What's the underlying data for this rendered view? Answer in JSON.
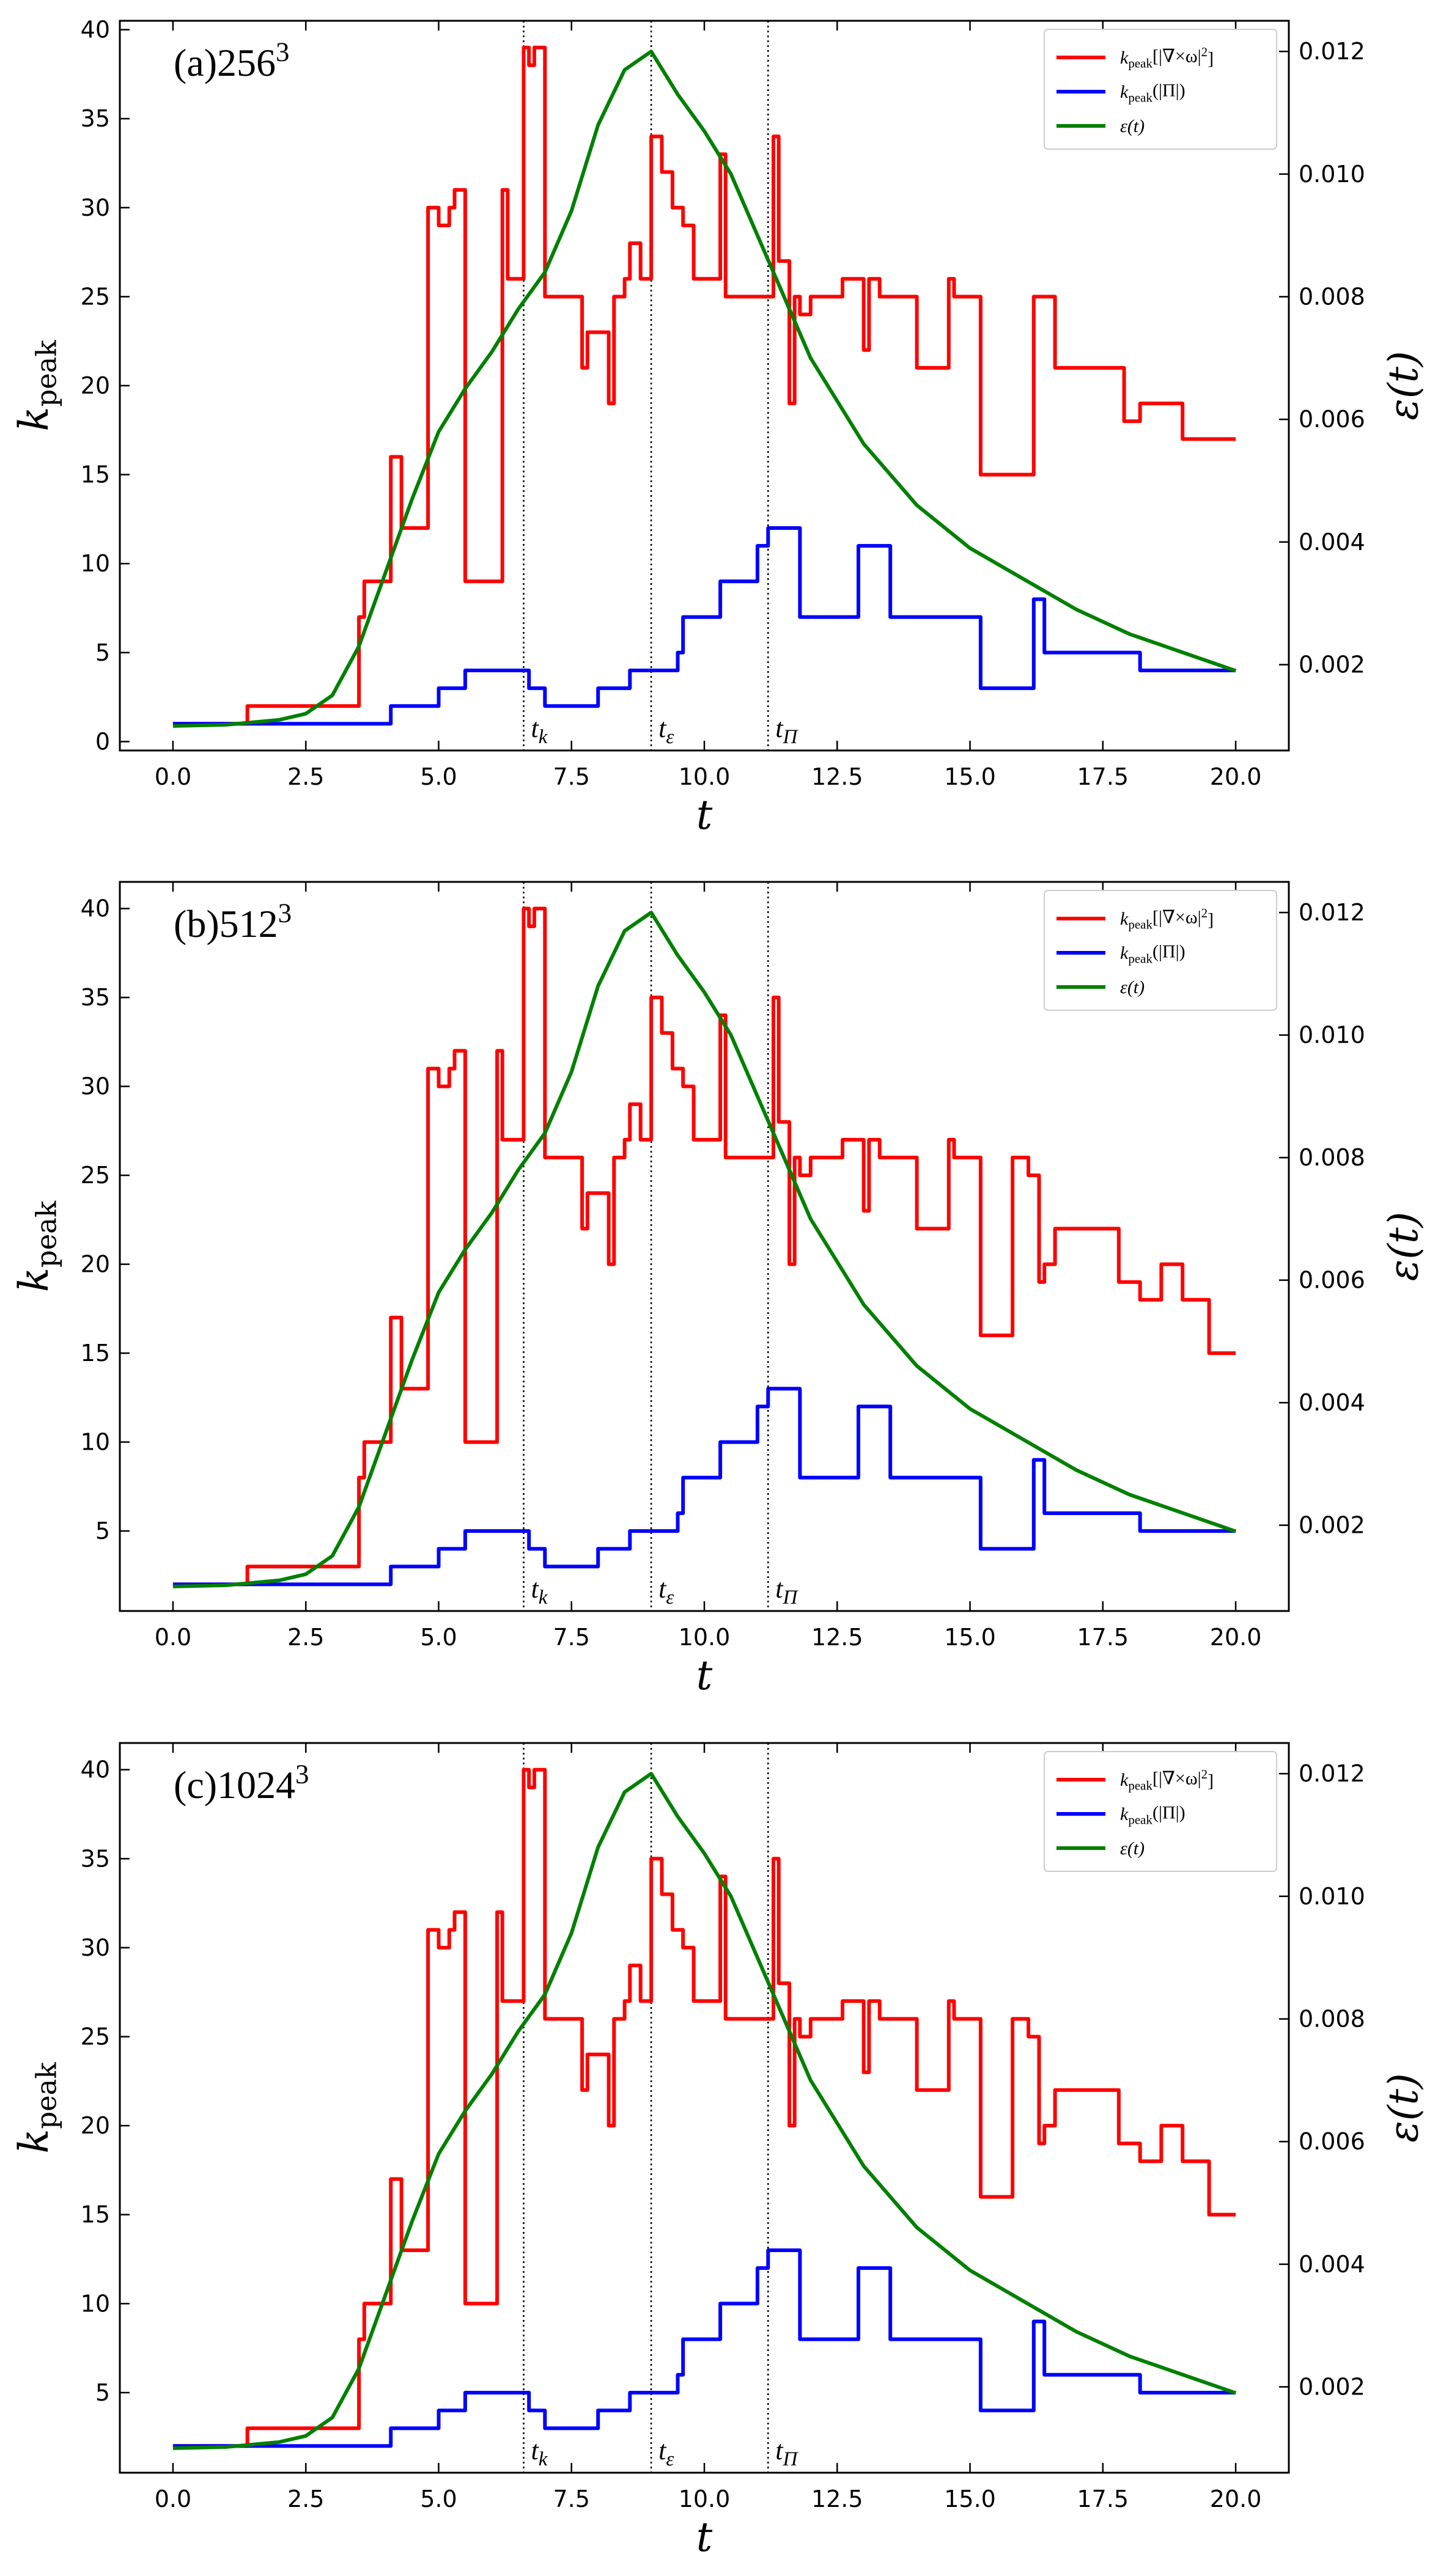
{
  "chart_data": [
    {
      "type": "line",
      "panel_label": "(a)256³",
      "xlabel": "t",
      "ylabel": "kpeak",
      "ylabel_right": "ε(t)",
      "xlim": [
        -1,
        21
      ],
      "ylim": [
        -0.5,
        40.5
      ],
      "y2lim": [
        0.0006,
        0.0125
      ],
      "xticks": [
        "0.0",
        "2.5",
        "5.0",
        "7.5",
        "10.0",
        "12.5",
        "15.0",
        "17.5",
        "20.0"
      ],
      "yticks": [
        "0",
        "5",
        "10",
        "15",
        "20",
        "25",
        "30",
        "35",
        "40"
      ],
      "y2ticks": [
        "0.002",
        "0.004",
        "0.006",
        "0.008",
        "0.010",
        "0.012"
      ],
      "vlines": [
        {
          "x": 6.6,
          "label": "tk"
        },
        {
          "x": 9.0,
          "label": "tε"
        },
        {
          "x": 11.2,
          "label": "tΠ"
        }
      ],
      "legend": [
        "kpeak[|∇×ω|²]",
        "kpeak(|Π|)",
        "ε(t)"
      ],
      "series": [
        {
          "name": "kpeak[|∇×ω|²]",
          "color": "#ff0000",
          "axis": "left",
          "step": true,
          "x": [
            0,
            1.4,
            3.5,
            3.6,
            4.1,
            4.3,
            4.8,
            5.0,
            5.2,
            5.3,
            5.5,
            5.6,
            6.2,
            6.3,
            6.6,
            6.7,
            6.8,
            7.0,
            7.7,
            7.8,
            8.2,
            8.3,
            8.5,
            8.6,
            8.8,
            9.0,
            9.2,
            9.4,
            9.6,
            9.8,
            10.0,
            10.3,
            10.4,
            10.5,
            10.9,
            11.0,
            11.3,
            11.4,
            11.6,
            11.7,
            11.8,
            12.0,
            12.5,
            12.6,
            13.0,
            13.1,
            13.3,
            14.0,
            14.6,
            14.7,
            14.8,
            15.2,
            16.1,
            16.2,
            16.6,
            17.9,
            18.2,
            19.0,
            20.0
          ],
          "y": [
            1,
            2,
            7,
            9,
            16,
            12,
            30,
            29,
            30,
            31,
            9,
            9,
            31,
            26,
            39,
            38,
            39,
            25,
            21,
            23,
            19,
            25,
            26,
            28,
            26,
            34,
            32,
            30,
            29,
            26,
            26,
            33,
            25,
            25,
            25,
            25,
            34,
            27,
            19,
            25,
            24,
            25,
            25,
            26,
            22,
            26,
            25,
            21,
            26,
            25,
            25,
            15,
            15,
            25,
            21,
            18,
            19,
            17,
            17
          ]
        },
        {
          "name": "kpeak(|Π|)",
          "color": "#0000ff",
          "axis": "left",
          "step": true,
          "x": [
            0,
            4.1,
            4.5,
            5.0,
            5.5,
            6.6,
            6.7,
            7.0,
            8.0,
            8.2,
            8.6,
            9.0,
            9.5,
            9.6,
            10.0,
            10.3,
            10.5,
            11.0,
            11.2,
            11.5,
            11.8,
            12.5,
            12.9,
            13.2,
            13.5,
            13.6,
            15.2,
            16.2,
            16.4,
            18.0,
            18.2,
            19.0,
            20.0
          ],
          "y": [
            1,
            2,
            2,
            3,
            4,
            4,
            3,
            2,
            3,
            3,
            4,
            4,
            5,
            7,
            7,
            9,
            9,
            11,
            12,
            12,
            7,
            7,
            11,
            11,
            7,
            7,
            3,
            8,
            5,
            5,
            4,
            4,
            4
          ]
        },
        {
          "name": "ε(t)",
          "color": "#008000",
          "axis": "right",
          "step": false,
          "x": [
            0,
            1,
            2,
            2.5,
            3,
            3.5,
            4,
            4.5,
            5,
            5.5,
            6,
            6.5,
            7,
            7.5,
            8,
            8.5,
            9,
            9.5,
            10,
            10.5,
            11,
            11.5,
            12,
            12.5,
            13,
            13.5,
            14,
            15,
            16,
            17,
            18,
            19,
            20
          ],
          "y": [
            0.001,
            0.00102,
            0.0011,
            0.0012,
            0.0015,
            0.0023,
            0.0035,
            0.0047,
            0.0058,
            0.0065,
            0.0071,
            0.0078,
            0.0084,
            0.0094,
            0.0108,
            0.0117,
            0.012,
            0.0113,
            0.0107,
            0.01,
            0.009,
            0.008,
            0.007,
            0.0063,
            0.0056,
            0.0051,
            0.0046,
            0.0039,
            0.0034,
            0.0029,
            0.0025,
            0.0022,
            0.0019
          ]
        }
      ]
    },
    {
      "type": "line",
      "panel_label": "(b)512³",
      "xlabel": "t",
      "ylabel": "kpeak",
      "ylabel_right": "ε(t)",
      "xlim": [
        -1,
        21
      ],
      "ylim": [
        0.5,
        41.5
      ],
      "y2lim": [
        0.0006,
        0.0125
      ],
      "xticks": [
        "0.0",
        "2.5",
        "5.0",
        "7.5",
        "10.0",
        "12.5",
        "15.0",
        "17.5",
        "20.0"
      ],
      "yticks": [
        "5",
        "10",
        "15",
        "20",
        "25",
        "30",
        "35",
        "40"
      ],
      "y2ticks": [
        "0.002",
        "0.004",
        "0.006",
        "0.008",
        "0.010",
        "0.012"
      ],
      "vlines": [
        {
          "x": 6.6,
          "label": "tk"
        },
        {
          "x": 9.0,
          "label": "tε"
        },
        {
          "x": 11.2,
          "label": "tΠ"
        }
      ],
      "legend": [
        "kpeak[|∇×ω|²]",
        "kpeak(|Π|)",
        "ε(t)"
      ],
      "series": [
        {
          "name": "kpeak[|∇×ω|²]",
          "color": "#ff0000",
          "axis": "left",
          "step": true,
          "x": [
            0,
            1.4,
            3.5,
            3.6,
            4.1,
            4.3,
            4.8,
            5.0,
            5.2,
            5.3,
            5.5,
            5.6,
            6.1,
            6.2,
            6.3,
            6.6,
            6.7,
            6.8,
            7.0,
            7.7,
            7.8,
            8.2,
            8.3,
            8.5,
            8.6,
            8.8,
            9.0,
            9.2,
            9.4,
            9.6,
            9.8,
            10.0,
            10.3,
            10.4,
            10.5,
            10.9,
            11.0,
            11.3,
            11.4,
            11.6,
            11.7,
            11.8,
            12.0,
            12.5,
            12.6,
            13.0,
            13.1,
            13.3,
            14.0,
            14.6,
            14.7,
            14.8,
            15.2,
            15.6,
            15.8,
            16.1,
            16.3,
            16.4,
            16.6,
            17.4,
            17.8,
            18.2,
            18.6,
            19.0,
            19.5,
            20.0
          ],
          "y": [
            2,
            3,
            8,
            10,
            17,
            13,
            31,
            30,
            31,
            32,
            10,
            10,
            32,
            27,
            27,
            40,
            39,
            40,
            26,
            22,
            24,
            20,
            26,
            27,
            29,
            27,
            35,
            33,
            31,
            30,
            27,
            27,
            34,
            26,
            26,
            26,
            26,
            35,
            28,
            20,
            26,
            25,
            26,
            26,
            27,
            23,
            27,
            26,
            22,
            27,
            26,
            26,
            16,
            16,
            26,
            25,
            19,
            20,
            22,
            22,
            19,
            18,
            20,
            18,
            15,
            15
          ]
        },
        {
          "name": "kpeak(|Π|)",
          "color": "#0000ff",
          "axis": "left",
          "step": true,
          "x": [
            0,
            4.1,
            4.5,
            5.0,
            5.5,
            6.6,
            6.7,
            7.0,
            8.0,
            8.2,
            8.6,
            9.0,
            9.5,
            9.6,
            10.0,
            10.3,
            10.5,
            11.0,
            11.2,
            11.5,
            11.8,
            12.5,
            12.9,
            13.2,
            13.5,
            13.6,
            15.2,
            16.2,
            16.4,
            18.0,
            18.2,
            19.0,
            20.0
          ],
          "y": [
            2,
            3,
            3,
            4,
            5,
            5,
            4,
            3,
            4,
            4,
            5,
            5,
            6,
            8,
            8,
            10,
            10,
            12,
            13,
            13,
            8,
            8,
            12,
            12,
            8,
            8,
            4,
            9,
            6,
            6,
            5,
            5,
            5
          ]
        },
        {
          "name": "ε(t)",
          "color": "#008000",
          "axis": "right",
          "step": false,
          "x": [
            0,
            1,
            2,
            2.5,
            3,
            3.5,
            4,
            4.5,
            5,
            5.5,
            6,
            6.5,
            7,
            7.5,
            8,
            8.5,
            9,
            9.5,
            10,
            10.5,
            11,
            11.5,
            12,
            12.5,
            13,
            13.5,
            14,
            15,
            16,
            17,
            18,
            19,
            20
          ],
          "y": [
            0.001,
            0.00102,
            0.0011,
            0.0012,
            0.0015,
            0.0023,
            0.0035,
            0.0047,
            0.0058,
            0.0065,
            0.0071,
            0.0078,
            0.0084,
            0.0094,
            0.0108,
            0.0117,
            0.012,
            0.0113,
            0.0107,
            0.01,
            0.009,
            0.008,
            0.007,
            0.0063,
            0.0056,
            0.0051,
            0.0046,
            0.0039,
            0.0034,
            0.0029,
            0.0025,
            0.0022,
            0.0019
          ]
        }
      ]
    },
    {
      "type": "line",
      "panel_label": "(c)1024³",
      "xlabel": "t",
      "ylabel": "kpeak",
      "ylabel_right": "ε(t)",
      "xlim": [
        -1,
        21
      ],
      "ylim": [
        0.5,
        41.5
      ],
      "y2lim": [
        0.0006,
        0.0125
      ],
      "xticks": [
        "0.0",
        "2.5",
        "5.0",
        "7.5",
        "10.0",
        "12.5",
        "15.0",
        "17.5",
        "20.0"
      ],
      "yticks": [
        "5",
        "10",
        "15",
        "20",
        "25",
        "30",
        "35",
        "40"
      ],
      "y2ticks": [
        "0.002",
        "0.004",
        "0.006",
        "0.008",
        "0.010",
        "0.012"
      ],
      "vlines": [
        {
          "x": 6.6,
          "label": "tk"
        },
        {
          "x": 9.0,
          "label": "tε"
        },
        {
          "x": 11.2,
          "label": "tΠ"
        }
      ],
      "legend": [
        "kpeak[|∇×ω|²]",
        "kpeak(|Π|)",
        "ε(t)"
      ],
      "series": [
        {
          "name": "kpeak[|∇×ω|²]",
          "color": "#ff0000",
          "axis": "left",
          "step": true,
          "x": [
            0,
            1.4,
            3.5,
            3.6,
            4.1,
            4.3,
            4.8,
            5.0,
            5.2,
            5.3,
            5.5,
            5.6,
            6.1,
            6.2,
            6.3,
            6.6,
            6.7,
            6.8,
            7.0,
            7.7,
            7.8,
            8.2,
            8.3,
            8.5,
            8.6,
            8.8,
            9.0,
            9.2,
            9.4,
            9.6,
            9.8,
            10.0,
            10.3,
            10.4,
            10.5,
            10.9,
            11.0,
            11.3,
            11.4,
            11.6,
            11.7,
            11.8,
            12.0,
            12.5,
            12.6,
            13.0,
            13.1,
            13.3,
            14.0,
            14.6,
            14.7,
            14.8,
            15.2,
            15.6,
            15.8,
            16.1,
            16.3,
            16.4,
            16.6,
            17.4,
            17.8,
            18.2,
            18.6,
            19.0,
            19.5,
            20.0
          ],
          "y": [
            2,
            3,
            8,
            10,
            17,
            13,
            31,
            30,
            31,
            32,
            10,
            10,
            32,
            27,
            27,
            40,
            39,
            40,
            26,
            22,
            24,
            20,
            26,
            27,
            29,
            27,
            35,
            33,
            31,
            30,
            27,
            27,
            34,
            26,
            26,
            26,
            26,
            35,
            28,
            20,
            26,
            25,
            26,
            26,
            27,
            23,
            27,
            26,
            22,
            27,
            26,
            26,
            16,
            16,
            26,
            25,
            19,
            20,
            22,
            22,
            19,
            18,
            20,
            18,
            15,
            15
          ]
        },
        {
          "name": "kpeak(|Π|)",
          "color": "#0000ff",
          "axis": "left",
          "step": true,
          "x": [
            0,
            4.1,
            4.5,
            5.0,
            5.5,
            6.6,
            6.7,
            7.0,
            8.0,
            8.2,
            8.6,
            9.0,
            9.5,
            9.6,
            10.0,
            10.3,
            10.5,
            11.0,
            11.2,
            11.5,
            11.8,
            12.5,
            12.9,
            13.2,
            13.5,
            13.6,
            15.2,
            16.2,
            16.4,
            18.0,
            18.2,
            19.0,
            20.0
          ],
          "y": [
            2,
            3,
            3,
            4,
            5,
            5,
            4,
            3,
            4,
            4,
            5,
            5,
            6,
            8,
            8,
            10,
            10,
            12,
            13,
            13,
            8,
            8,
            12,
            12,
            8,
            8,
            4,
            9,
            6,
            6,
            5,
            5,
            5
          ]
        },
        {
          "name": "ε(t)",
          "color": "#008000",
          "axis": "right",
          "step": false,
          "x": [
            0,
            1,
            2,
            2.5,
            3,
            3.5,
            4,
            4.5,
            5,
            5.5,
            6,
            6.5,
            7,
            7.5,
            8,
            8.5,
            9,
            9.5,
            10,
            10.5,
            11,
            11.5,
            12,
            12.5,
            13,
            13.5,
            14,
            15,
            16,
            17,
            18,
            19,
            20
          ],
          "y": [
            0.001,
            0.00102,
            0.0011,
            0.0012,
            0.0015,
            0.0023,
            0.0035,
            0.0047,
            0.0058,
            0.0065,
            0.0071,
            0.0078,
            0.0084,
            0.0094,
            0.0108,
            0.0117,
            0.012,
            0.0113,
            0.0107,
            0.01,
            0.009,
            0.008,
            0.007,
            0.0063,
            0.0056,
            0.0051,
            0.0046,
            0.0039,
            0.0034,
            0.0029,
            0.0025,
            0.0022,
            0.0019
          ]
        }
      ]
    }
  ]
}
